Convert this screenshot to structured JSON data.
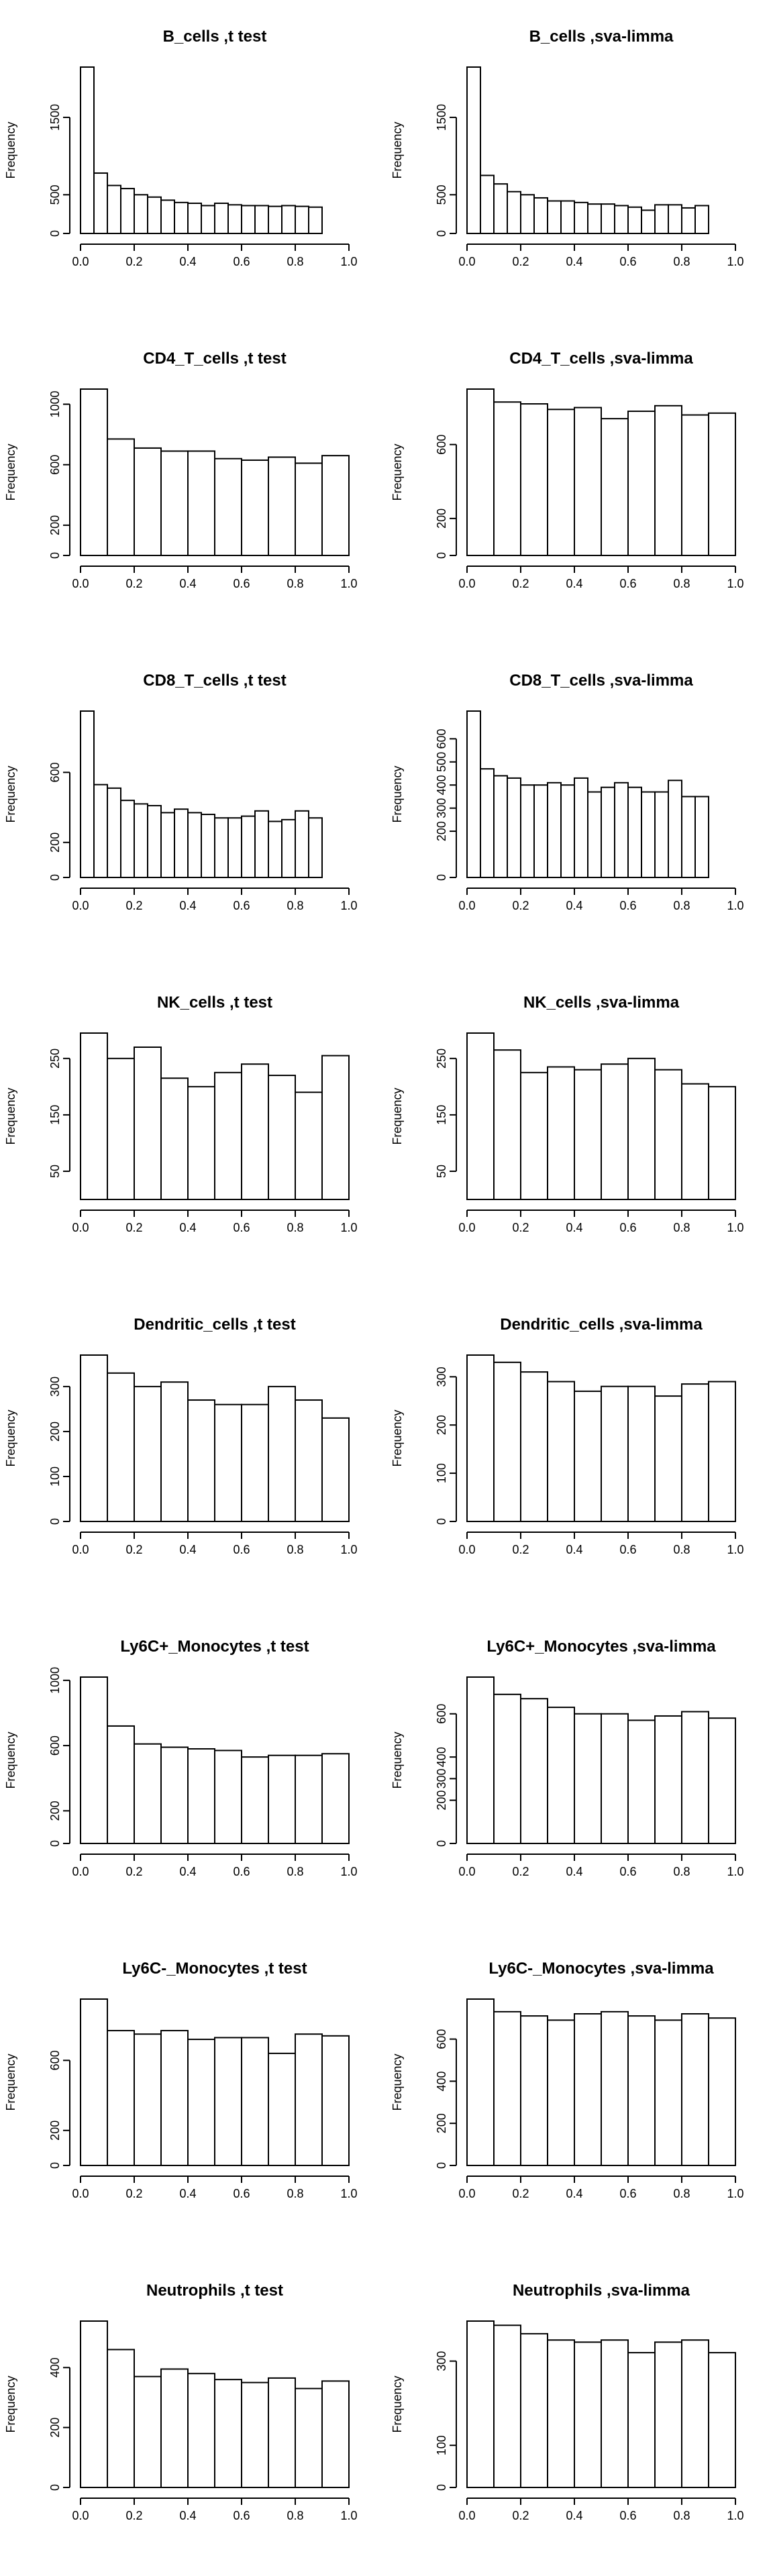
{
  "chart_data": [
    {
      "type": "bar",
      "title": "B_cells ,t test",
      "xlabel": "",
      "ylabel": "Frequency",
      "xlim": [
        0,
        1
      ],
      "ylim": [
        0,
        2150
      ],
      "bin_width": 0.05,
      "x_ticks": [
        0.0,
        0.2,
        0.4,
        0.6,
        0.8,
        1.0
      ],
      "y_ticks": [
        0,
        500,
        1500
      ],
      "values": [
        2150,
        780,
        620,
        580,
        500,
        470,
        430,
        400,
        390,
        360,
        390,
        370,
        360,
        360,
        350,
        360,
        350,
        340
      ]
    },
    {
      "type": "bar",
      "title": "B_cells ,sva-limma",
      "xlabel": "",
      "ylabel": "Frequency",
      "xlim": [
        0,
        1
      ],
      "ylim": [
        0,
        2150
      ],
      "bin_width": 0.05,
      "x_ticks": [
        0.0,
        0.2,
        0.4,
        0.6,
        0.8,
        1.0
      ],
      "y_ticks": [
        0,
        500,
        1500
      ],
      "values": [
        2150,
        750,
        640,
        540,
        500,
        460,
        420,
        420,
        400,
        380,
        380,
        360,
        340,
        300,
        370,
        370,
        330,
        360
      ]
    },
    {
      "type": "bar",
      "title": "CD4_T_cells ,t test",
      "xlabel": "",
      "ylabel": "Frequency",
      "xlim": [
        0,
        1
      ],
      "ylim": [
        0,
        1100
      ],
      "bin_width": 0.1,
      "x_ticks": [
        0.0,
        0.2,
        0.4,
        0.6,
        0.8,
        1.0
      ],
      "y_ticks": [
        0,
        200,
        600,
        1000
      ],
      "values": [
        1100,
        770,
        710,
        690,
        690,
        640,
        630,
        650,
        610,
        660
      ]
    },
    {
      "type": "bar",
      "title": "CD4_T_cells ,sva-limma",
      "xlabel": "",
      "ylabel": "Frequency",
      "xlim": [
        0,
        1
      ],
      "ylim": [
        0,
        900
      ],
      "bin_width": 0.1,
      "x_ticks": [
        0.0,
        0.2,
        0.4,
        0.6,
        0.8,
        1.0
      ],
      "y_ticks": [
        0,
        200,
        600
      ],
      "values": [
        900,
        830,
        820,
        790,
        800,
        740,
        780,
        810,
        760,
        770
      ]
    },
    {
      "type": "bar",
      "title": "CD8_T_cells ,t test",
      "xlabel": "",
      "ylabel": "Frequency",
      "xlim": [
        0,
        1
      ],
      "ylim": [
        0,
        950
      ],
      "bin_width": 0.05,
      "x_ticks": [
        0.0,
        0.2,
        0.4,
        0.6,
        0.8,
        1.0
      ],
      "y_ticks": [
        0,
        200,
        600
      ],
      "values": [
        950,
        530,
        510,
        440,
        420,
        410,
        370,
        390,
        370,
        360,
        340,
        340,
        350,
        380,
        320,
        330,
        380,
        340
      ]
    },
    {
      "type": "bar",
      "title": "CD8_T_cells ,sva-limma",
      "xlabel": "",
      "ylabel": "Frequency",
      "xlim": [
        0,
        1
      ],
      "ylim": [
        0,
        720
      ],
      "bin_width": 0.05,
      "x_ticks": [
        0.0,
        0.2,
        0.4,
        0.6,
        0.8,
        1.0
      ],
      "y_ticks": [
        0,
        200,
        300,
        400,
        500,
        600
      ],
      "values": [
        720,
        470,
        440,
        430,
        400,
        400,
        410,
        400,
        430,
        370,
        390,
        410,
        390,
        370,
        370,
        420,
        350,
        350
      ]
    },
    {
      "type": "bar",
      "title": "NK_cells ,t test",
      "xlabel": "",
      "ylabel": "Frequency",
      "xlim": [
        0,
        1
      ],
      "ylim": [
        0,
        295
      ],
      "bin_width": 0.1,
      "x_ticks": [
        0.0,
        0.2,
        0.4,
        0.6,
        0.8,
        1.0
      ],
      "y_ticks": [
        50,
        150,
        250
      ],
      "values": [
        295,
        250,
        270,
        215,
        200,
        225,
        240,
        220,
        190,
        255
      ]
    },
    {
      "type": "bar",
      "title": "NK_cells ,sva-limma",
      "xlabel": "",
      "ylabel": "Frequency",
      "xlim": [
        0,
        1
      ],
      "ylim": [
        0,
        295
      ],
      "bin_width": 0.1,
      "x_ticks": [
        0.0,
        0.2,
        0.4,
        0.6,
        0.8,
        1.0
      ],
      "y_ticks": [
        50,
        150,
        250
      ],
      "values": [
        295,
        265,
        225,
        235,
        230,
        240,
        250,
        230,
        205,
        200
      ]
    },
    {
      "type": "bar",
      "title": "Dendritic_cells ,t test",
      "xlabel": "",
      "ylabel": "Frequency",
      "xlim": [
        0,
        1
      ],
      "ylim": [
        0,
        370
      ],
      "bin_width": 0.1,
      "x_ticks": [
        0.0,
        0.2,
        0.4,
        0.6,
        0.8,
        1.0
      ],
      "y_ticks": [
        0,
        100,
        200,
        300
      ],
      "values": [
        370,
        330,
        300,
        310,
        270,
        260,
        260,
        300,
        270,
        230
      ]
    },
    {
      "type": "bar",
      "title": "Dendritic_cells ,sva-limma",
      "xlabel": "",
      "ylabel": "Frequency",
      "xlim": [
        0,
        1
      ],
      "ylim": [
        0,
        345
      ],
      "bin_width": 0.1,
      "x_ticks": [
        0.0,
        0.2,
        0.4,
        0.6,
        0.8,
        1.0
      ],
      "y_ticks": [
        0,
        100,
        200,
        300
      ],
      "values": [
        345,
        330,
        310,
        290,
        270,
        280,
        280,
        260,
        285,
        290
      ]
    },
    {
      "type": "bar",
      "title": "Ly6C+_Monocytes ,t test",
      "xlabel": "",
      "ylabel": "Frequency",
      "xlim": [
        0,
        1
      ],
      "ylim": [
        0,
        1020
      ],
      "bin_width": 0.1,
      "x_ticks": [
        0.0,
        0.2,
        0.4,
        0.6,
        0.8,
        1.0
      ],
      "y_ticks": [
        0,
        200,
        600,
        1000
      ],
      "values": [
        1020,
        720,
        610,
        590,
        580,
        570,
        530,
        540,
        540,
        550
      ]
    },
    {
      "type": "bar",
      "title": "Ly6C+_Monocytes ,sva-limma",
      "xlabel": "",
      "ylabel": "Frequency",
      "xlim": [
        0,
        1
      ],
      "ylim": [
        0,
        770
      ],
      "bin_width": 0.1,
      "x_ticks": [
        0.0,
        0.2,
        0.4,
        0.6,
        0.8,
        1.0
      ],
      "y_ticks": [
        0,
        200,
        300,
        400,
        600
      ],
      "values": [
        770,
        690,
        670,
        630,
        600,
        600,
        570,
        590,
        610,
        580
      ]
    },
    {
      "type": "bar",
      "title": "Ly6C-_Monocytes ,t test",
      "xlabel": "",
      "ylabel": "Frequency",
      "xlim": [
        0,
        1
      ],
      "ylim": [
        0,
        950
      ],
      "bin_width": 0.1,
      "x_ticks": [
        0.0,
        0.2,
        0.4,
        0.6,
        0.8,
        1.0
      ],
      "y_ticks": [
        0,
        200,
        600
      ],
      "values": [
        950,
        770,
        750,
        770,
        720,
        730,
        730,
        640,
        750,
        740
      ]
    },
    {
      "type": "bar",
      "title": "Ly6C-_Monocytes ,sva-limma",
      "xlabel": "",
      "ylabel": "Frequency",
      "xlim": [
        0,
        1
      ],
      "ylim": [
        0,
        790
      ],
      "bin_width": 0.1,
      "x_ticks": [
        0.0,
        0.2,
        0.4,
        0.6,
        0.8,
        1.0
      ],
      "y_ticks": [
        0,
        200,
        400,
        600
      ],
      "values": [
        790,
        730,
        710,
        690,
        720,
        730,
        710,
        690,
        720,
        700
      ]
    },
    {
      "type": "bar",
      "title": "Neutrophils ,t test",
      "xlabel": "",
      "ylabel": "Frequency",
      "xlim": [
        0,
        1
      ],
      "ylim": [
        0,
        555
      ],
      "bin_width": 0.1,
      "x_ticks": [
        0.0,
        0.2,
        0.4,
        0.6,
        0.8,
        1.0
      ],
      "y_ticks": [
        0,
        200,
        400
      ],
      "values": [
        555,
        460,
        370,
        395,
        380,
        360,
        350,
        365,
        330,
        355
      ]
    },
    {
      "type": "bar",
      "title": "Neutrophils ,sva-limma",
      "xlabel": "",
      "ylabel": "Frequency",
      "xlim": [
        0,
        1
      ],
      "ylim": [
        0,
        395
      ],
      "bin_width": 0.1,
      "x_ticks": [
        0.0,
        0.2,
        0.4,
        0.6,
        0.8,
        1.0
      ],
      "y_ticks": [
        0,
        100,
        300
      ],
      "values": [
        395,
        385,
        365,
        350,
        345,
        350,
        320,
        345,
        350,
        320
      ]
    }
  ]
}
